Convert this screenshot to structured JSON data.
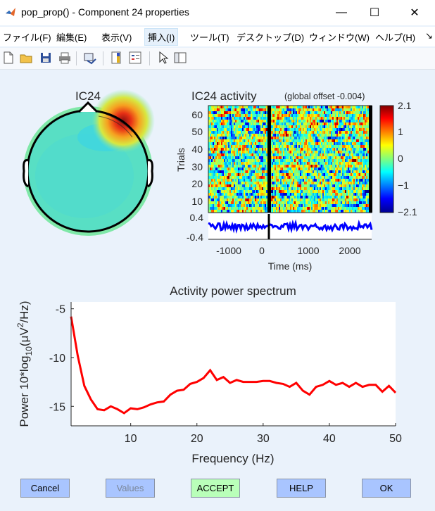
{
  "window": {
    "title": "pop_prop() - Component 24 properties",
    "minimize_glyph": "—",
    "maximize_glyph": "☐",
    "close_glyph": "✕"
  },
  "menu": [
    {
      "label": "ファイル(F)"
    },
    {
      "label": "編集(E)"
    },
    {
      "label": "表示(V)"
    },
    {
      "label": "挿入(I)"
    },
    {
      "label": "ツール(T)"
    },
    {
      "label": "デスクトップ(D)"
    },
    {
      "label": "ウィンドウ(W)"
    },
    {
      "label": "ヘルプ(H)"
    },
    {
      "label": "↘"
    }
  ],
  "toolbar_icons": [
    "new-file-icon",
    "open-folder-icon",
    "save-icon",
    "print-icon",
    "link-plot-icon",
    "colorbar-icon",
    "legend-icon",
    "pointer-icon",
    "property-editor-icon"
  ],
  "topo": {
    "title": "IC24"
  },
  "erp": {
    "title": "IC24 activity",
    "subtitle": "(global offset -0.004)",
    "ylabel": "Trials",
    "trial_ticks": [
      "60",
      "50",
      "40",
      "30",
      "20",
      "10"
    ],
    "erp_ticks": [
      "0.4",
      "-0.4"
    ],
    "xticks": [
      "-1000",
      "0",
      "1000",
      "2000"
    ],
    "xlabel": "Time (ms)",
    "colorbar_ticks": [
      "2.1",
      "1",
      "0",
      "−1",
      "−2.1"
    ],
    "erp_color": "#0000ff"
  },
  "chart_data": {
    "type": "line",
    "title": "Activity power spectrum",
    "xlabel": "Frequency (Hz)",
    "ylabel_prefix": "Power 10*log",
    "ylabel_sub": "10",
    "ylabel_mid": "(μV",
    "ylabel_sup": "2",
    "ylabel_suffix": "/Hz)",
    "xlim": [
      1,
      50
    ],
    "ylim": [
      -17,
      -4.3
    ],
    "xticks": [
      10,
      20,
      30,
      40,
      50
    ],
    "yticks": [
      -5,
      -10,
      -15
    ],
    "xtick_labels": [
      "10",
      "20",
      "30",
      "40",
      "50"
    ],
    "ytick_labels": [
      "-5",
      "-10",
      "-15"
    ],
    "color": "#ff0000",
    "x": [
      1,
      2,
      3,
      4,
      5,
      6,
      7,
      8,
      9,
      10,
      11,
      12,
      13,
      14,
      15,
      16,
      17,
      18,
      19,
      20,
      21,
      22,
      23,
      24,
      25,
      26,
      27,
      28,
      29,
      30,
      31,
      32,
      33,
      34,
      35,
      36,
      37,
      38,
      39,
      40,
      41,
      42,
      43,
      44,
      45,
      46,
      47,
      48,
      49,
      50
    ],
    "y": [
      -5.8,
      -9.8,
      -12.9,
      -14.3,
      -15.3,
      -15.4,
      -15.0,
      -15.3,
      -15.7,
      -15.2,
      -15.3,
      -15.1,
      -14.8,
      -14.6,
      -14.5,
      -13.8,
      -13.4,
      -13.3,
      -12.7,
      -12.5,
      -12.1,
      -11.3,
      -12.3,
      -12.0,
      -12.6,
      -12.3,
      -12.5,
      -12.5,
      -12.5,
      -12.4,
      -12.4,
      -12.6,
      -12.7,
      -13.0,
      -12.6,
      -13.4,
      -13.8,
      -13.0,
      -12.8,
      -12.4,
      -12.8,
      -12.6,
      -13.0,
      -12.6,
      -13.0,
      -12.8,
      -12.8,
      -13.5,
      -12.9,
      -13.6
    ]
  },
  "buttons": {
    "cancel": {
      "label": "Cancel",
      "color": "#a9c5ff"
    },
    "values": {
      "label": "Values",
      "color": "#a9c5ff",
      "text_color": "#7a8699"
    },
    "accept": {
      "label": "ACCEPT",
      "color": "#b9ffb9"
    },
    "help": {
      "label": "HELP",
      "color": "#a9c5ff"
    },
    "ok": {
      "label": "OK",
      "color": "#a9c5ff"
    }
  }
}
